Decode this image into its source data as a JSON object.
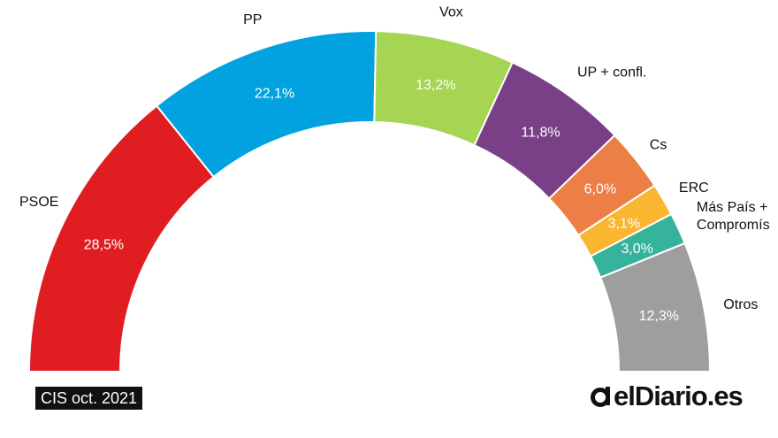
{
  "chart_data": {
    "type": "pie",
    "subtype": "semicircle-donut",
    "series": [
      {
        "name": "PSOE",
        "value": 28.5,
        "value_label": "28,5%",
        "color": "#e01e22"
      },
      {
        "name": "PP",
        "value": 22.1,
        "value_label": "22,1%",
        "color": "#02a1e0"
      },
      {
        "name": "Vox",
        "value": 13.2,
        "value_label": "13,2%",
        "color": "#a5d552"
      },
      {
        "name": "UP + confl.",
        "value": 11.8,
        "value_label": "11,8%",
        "color": "#793f87"
      },
      {
        "name": "Cs",
        "value": 6.0,
        "value_label": "6,0%",
        "color": "#ec7f46"
      },
      {
        "name": "ERC",
        "value": 3.1,
        "value_label": "3,1%",
        "color": "#fbb631"
      },
      {
        "name": "Más País + Compromís",
        "name_lines": [
          "Más País +",
          "Compromís"
        ],
        "value": 3.0,
        "value_label": "3,0%",
        "color": "#36b39c"
      },
      {
        "name": "Otros",
        "value": 12.3,
        "value_label": "12,3%",
        "color": "#9e9e9e"
      }
    ]
  },
  "source": "CIS oct. 2021",
  "brand": {
    "name": "elDiario.es",
    "icon": "eldiario-logo-icon"
  }
}
